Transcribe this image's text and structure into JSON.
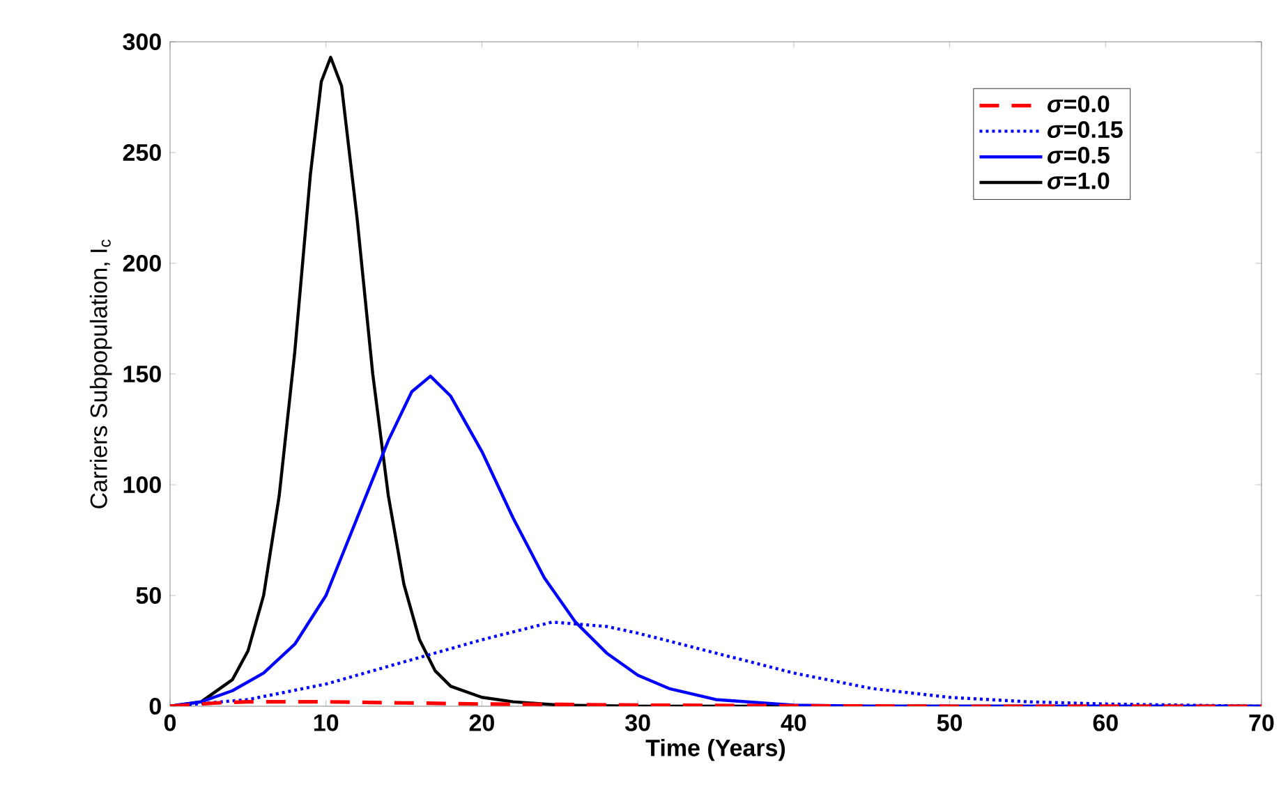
{
  "chart_data": {
    "type": "line",
    "xlabel": "Time (Years)",
    "ylabel": "Carriers Subpopulation, I$_{c}$",
    "xlim": [
      0,
      70
    ],
    "ylim": [
      0,
      300
    ],
    "xticks": [
      0,
      10,
      20,
      30,
      40,
      50,
      60,
      70
    ],
    "yticks": [
      0,
      50,
      100,
      150,
      200,
      250,
      300
    ],
    "grid": false,
    "legend": "top right",
    "marker": "none",
    "series": [
      {
        "name": "*σ*=0.0",
        "color": "#ff0000",
        "line_style": "dashed",
        "x": [
          0,
          3,
          5,
          10,
          15,
          20,
          25,
          30,
          40,
          50,
          70
        ],
        "values": [
          0,
          1.5,
          2,
          2,
          1.5,
          1,
          0.8,
          0.5,
          0.2,
          0,
          0
        ]
      },
      {
        "name": "*σ*=0.15",
        "color": "#0000ff",
        "line_style": "dotted",
        "x": [
          0,
          5,
          10,
          15,
          20,
          24.5,
          28,
          30,
          35,
          40,
          45,
          50,
          55,
          60,
          65,
          70
        ],
        "values": [
          0,
          3,
          10,
          20,
          30,
          38,
          36,
          33,
          24,
          15,
          8,
          4,
          2,
          1,
          0.5,
          0
        ]
      },
      {
        "name": "*σ*=0.5",
        "color": "#0000ff",
        "line_style": "solid",
        "x": [
          0,
          2,
          4,
          6,
          8,
          10,
          12,
          14,
          15.5,
          16.7,
          18,
          20,
          22,
          24,
          26,
          28,
          30,
          32,
          35,
          40,
          45,
          70
        ],
        "values": [
          0,
          2,
          7,
          15,
          28,
          50,
          85,
          120,
          142,
          149,
          140,
          115,
          85,
          58,
          38,
          24,
          14,
          8,
          3,
          0.5,
          0,
          0
        ]
      },
      {
        "name": "*σ*=1.0",
        "color": "#000000",
        "line_style": "solid",
        "x": [
          0,
          2,
          4,
          5,
          6,
          7,
          8,
          9,
          9.7,
          10.3,
          11,
          12,
          13,
          14,
          15,
          16,
          17,
          18,
          20,
          22,
          25,
          30,
          70
        ],
        "values": [
          0,
          2,
          12,
          25,
          50,
          95,
          160,
          240,
          282,
          293,
          280,
          220,
          150,
          95,
          55,
          30,
          16,
          9,
          4,
          2,
          0.5,
          0,
          0
        ]
      }
    ]
  }
}
